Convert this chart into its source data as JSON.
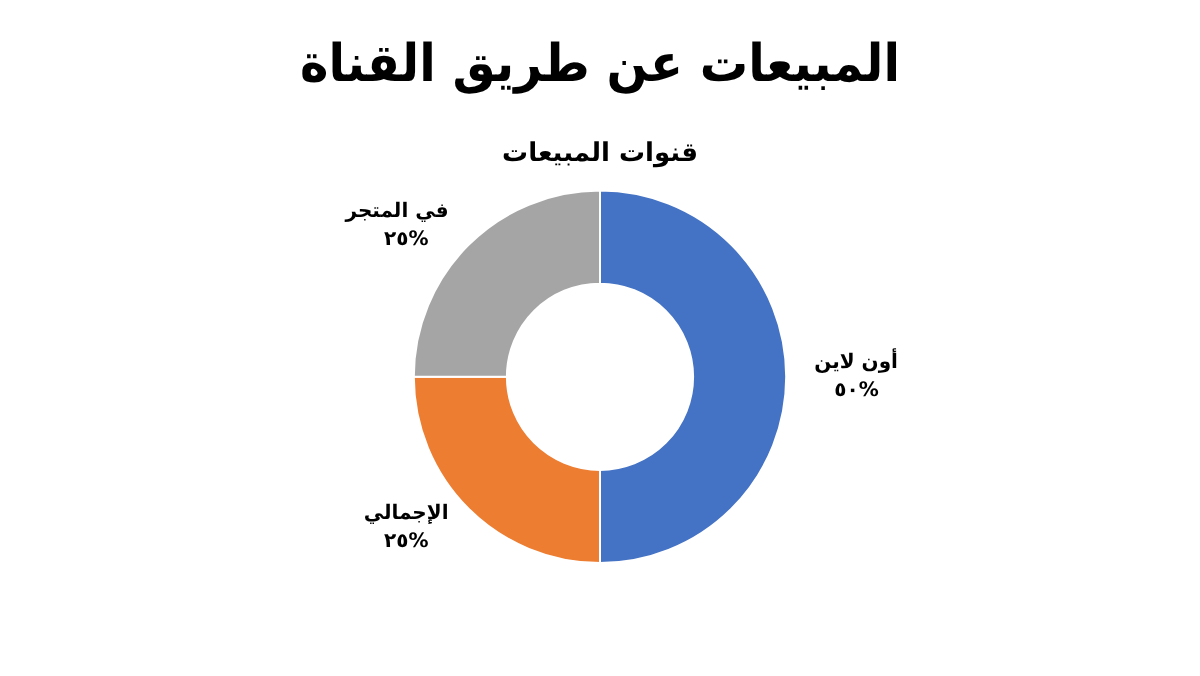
{
  "chart_data": {
    "type": "donut",
    "title": "المبيعات عن طريق القناة",
    "subtitle": "قنوات المبيعات",
    "categories": [
      "أون لاين",
      "الإجمالي",
      "في المتجر"
    ],
    "values": [
      50,
      25,
      25
    ],
    "value_labels": [
      "٥٠%",
      "٢٥%",
      "٢٥%"
    ],
    "colors": [
      "#4472c4",
      "#ed7d31",
      "#a5a5a5"
    ],
    "legend": false
  }
}
